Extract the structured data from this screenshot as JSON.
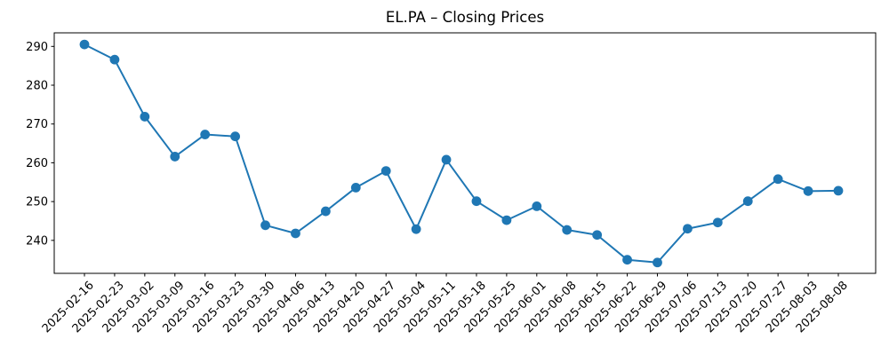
{
  "chart_data": {
    "type": "line",
    "title": "EL.PA – Closing Prices",
    "x": [
      "2025-02-16",
      "2025-02-23",
      "2025-03-02",
      "2025-03-09",
      "2025-03-16",
      "2025-03-23",
      "2025-03-30",
      "2025-04-06",
      "2025-04-13",
      "2025-04-20",
      "2025-04-27",
      "2025-05-04",
      "2025-05-11",
      "2025-05-18",
      "2025-05-25",
      "2025-06-01",
      "2025-06-08",
      "2025-06-15",
      "2025-06-22",
      "2025-06-29",
      "2025-07-06",
      "2025-07-13",
      "2025-07-20",
      "2025-07-27",
      "2025-08-03",
      "2025-08-08"
    ],
    "values": [
      290.5,
      286.6,
      271.9,
      261.6,
      267.3,
      266.8,
      243.9,
      241.8,
      247.5,
      253.6,
      257.9,
      242.9,
      260.8,
      250.1,
      245.2,
      248.8,
      242.7,
      241.4,
      235.0,
      234.3,
      243.0,
      244.6,
      250.1,
      255.8,
      252.7,
      252.8
    ],
    "xlabel": "",
    "ylabel": "",
    "yticks": [
      240,
      250,
      260,
      270,
      280,
      290
    ],
    "ylim": [
      231.5,
      293.5
    ],
    "line_color": "#1f77b4",
    "marker": "circle",
    "grid": false,
    "legend": "none",
    "x_tick_rotation": 45
  }
}
